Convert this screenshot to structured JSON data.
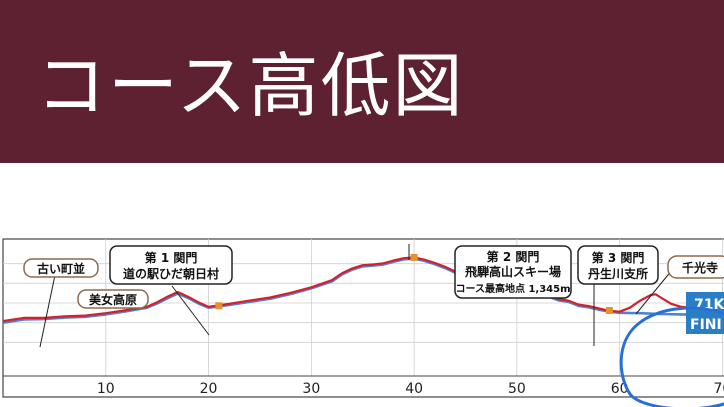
{
  "header": {
    "title": "コース高低図",
    "background_color": "#5e2132",
    "text_color": "#ffffff"
  },
  "chart_data": {
    "type": "line",
    "title": "",
    "xlabel": "",
    "ylabel": "",
    "xlim": [
      0,
      72
    ],
    "ylim": [
      0,
      1500
    ],
    "xticks": [
      10,
      20,
      30,
      40,
      50,
      60,
      70
    ],
    "xtick_labels": [
      "10",
      "20",
      "30",
      "40",
      "50",
      "60",
      "70"
    ],
    "grid": true,
    "series": [
      {
        "color": "#d41f2d",
        "x": [
          0,
          2,
          4,
          6,
          8,
          10,
          12,
          14,
          15,
          16,
          17,
          18,
          19,
          20,
          21,
          22,
          24,
          26,
          28,
          30,
          32,
          33,
          34,
          35,
          36,
          37,
          38,
          39,
          40,
          41,
          42,
          43,
          44,
          45,
          46,
          47,
          48,
          49,
          50,
          51,
          52,
          53,
          54,
          55,
          56,
          57,
          58,
          59,
          60,
          61,
          62,
          63,
          63.5,
          64,
          65,
          66,
          67,
          68,
          69,
          70,
          71,
          72
        ],
        "y": [
          520,
          560,
          560,
          580,
          590,
          620,
          660,
          700,
          760,
          830,
          890,
          830,
          760,
          700,
          720,
          740,
          780,
          820,
          880,
          950,
          1040,
          1130,
          1190,
          1230,
          1240,
          1255,
          1290,
          1320,
          1330,
          1300,
          1260,
          1210,
          1150,
          1090,
          1030,
          980,
          950,
          900,
          880,
          920,
          900,
          850,
          800,
          780,
          730,
          710,
          680,
          650,
          640,
          690,
          780,
          850,
          860,
          820,
          740,
          700,
          690,
          650,
          640,
          630,
          630,
          620
        ]
      },
      {
        "color": "#4a86c8",
        "x": [
          0,
          2,
          4,
          6,
          8,
          10,
          12,
          14,
          15,
          16,
          17,
          18,
          19,
          20,
          21,
          22,
          24,
          26,
          28,
          30,
          32,
          33,
          34,
          35,
          36,
          37,
          38,
          39,
          40,
          41,
          42,
          43,
          44,
          45,
          46,
          47,
          48,
          49,
          50,
          51,
          52,
          53,
          54,
          55,
          56,
          57,
          58,
          59,
          60,
          62,
          64,
          66,
          68,
          70,
          72
        ],
        "y": [
          500,
          540,
          545,
          565,
          575,
          605,
          645,
          690,
          745,
          810,
          870,
          815,
          745,
          690,
          705,
          725,
          765,
          805,
          865,
          935,
          1025,
          1115,
          1175,
          1215,
          1225,
          1240,
          1275,
          1305,
          1315,
          1285,
          1245,
          1195,
          1135,
          1075,
          1015,
          965,
          935,
          885,
          865,
          905,
          885,
          835,
          785,
          765,
          715,
          695,
          665,
          640,
          625,
          620,
          610,
          605,
          600,
          595,
          590
        ]
      }
    ],
    "markers": [
      {
        "x": 21,
        "y": 715
      },
      {
        "x": 40,
        "y": 1330
      },
      {
        "x": 59,
        "y": 655
      }
    ],
    "annotations": {
      "old_town": "古い町並",
      "bijo_kogen": "美女高原",
      "checkpoint1": [
        "第 1 関門",
        "道の駅ひだ朝日村"
      ],
      "checkpoint2": [
        "第 2 関門",
        "飛騨高山スキー場",
        "コース最高地点 1,345m"
      ],
      "checkpoint3": [
        "第 3 関門",
        "丹生川支所"
      ],
      "senkoji": "千光寺",
      "finish_top": "71K",
      "finish_bottom": "FINI"
    }
  }
}
